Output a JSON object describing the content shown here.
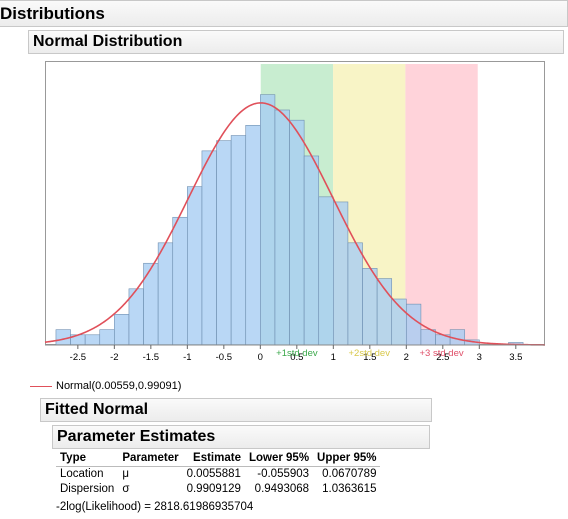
{
  "header": {
    "title": "Distributions"
  },
  "section": {
    "title": "Normal Distribution"
  },
  "chart_data": {
    "type": "bar",
    "title": "",
    "xlabel": "",
    "ylabel": "",
    "xlim": [
      -2.95,
      3.9
    ],
    "x_ticks": [
      "-2.5",
      "-2",
      "-1.5",
      "-1",
      "-0.5",
      "0",
      "0.5",
      "1",
      "1.5",
      "2",
      "2.5",
      "3",
      "3.5"
    ],
    "bin_width": 0.2,
    "bins": [
      {
        "x0": -2.8,
        "v": 3
      },
      {
        "x0": -2.6,
        "v": 2
      },
      {
        "x0": -2.4,
        "v": 2
      },
      {
        "x0": -2.2,
        "v": 3
      },
      {
        "x0": -2.0,
        "v": 6
      },
      {
        "x0": -1.8,
        "v": 11
      },
      {
        "x0": -1.6,
        "v": 16
      },
      {
        "x0": -1.4,
        "v": 20
      },
      {
        "x0": -1.2,
        "v": 25
      },
      {
        "x0": -1.0,
        "v": 31
      },
      {
        "x0": -0.8,
        "v": 38
      },
      {
        "x0": -0.6,
        "v": 40
      },
      {
        "x0": -0.4,
        "v": 41
      },
      {
        "x0": -0.2,
        "v": 43
      },
      {
        "x0": 0.0,
        "v": 49
      },
      {
        "x0": 0.2,
        "v": 46
      },
      {
        "x0": 0.4,
        "v": 44
      },
      {
        "x0": 0.6,
        "v": 37
      },
      {
        "x0": 0.8,
        "v": 29
      },
      {
        "x0": 1.0,
        "v": 28
      },
      {
        "x0": 1.2,
        "v": 20
      },
      {
        "x0": 1.4,
        "v": 15
      },
      {
        "x0": 1.6,
        "v": 13
      },
      {
        "x0": 1.8,
        "v": 9
      },
      {
        "x0": 2.0,
        "v": 8
      },
      {
        "x0": 2.2,
        "v": 3
      },
      {
        "x0": 2.4,
        "v": 2
      },
      {
        "x0": 2.6,
        "v": 3
      },
      {
        "x0": 2.8,
        "v": 1
      },
      {
        "x0": 3.0,
        "v": 0
      },
      {
        "x0": 3.2,
        "v": 0
      },
      {
        "x0": 3.4,
        "v": 0.5
      }
    ],
    "ylim": [
      0,
      55
    ],
    "bands": [
      {
        "label": "+1std dev",
        "from": 0.00559,
        "to": 0.9965,
        "fill": "#c8edd0",
        "text_color": "#3aa84a"
      },
      {
        "label": "+2std dev",
        "from": 0.9965,
        "to": 1.9874,
        "fill": "#f8f4c6",
        "text_color": "#d8c84a"
      },
      {
        "label": "+3 std dev",
        "from": 1.9874,
        "to": 2.9783,
        "fill": "#ffd3da",
        "text_color": "#e0506a"
      }
    ],
    "bar_color": "#a8cdf2",
    "curve": {
      "label": "Normal(0.00559,0.99091)",
      "mu": 0.00559,
      "sigma": 0.99091,
      "color": "#e0505a"
    }
  },
  "fitted": {
    "title": "Fitted Normal",
    "param_title": "Parameter Estimates",
    "columns": [
      "Type",
      "Parameter",
      "Estimate",
      "Lower 95%",
      "Upper 95%"
    ],
    "rows": [
      [
        "Location",
        "μ",
        "0.0055881",
        "-0.055903",
        "0.0670789"
      ],
      [
        "Dispersion",
        "σ",
        "0.9909129",
        "0.9493068",
        "1.0363615"
      ]
    ],
    "loglik": "-2log(Likelihood) = 2818.61986935704"
  }
}
